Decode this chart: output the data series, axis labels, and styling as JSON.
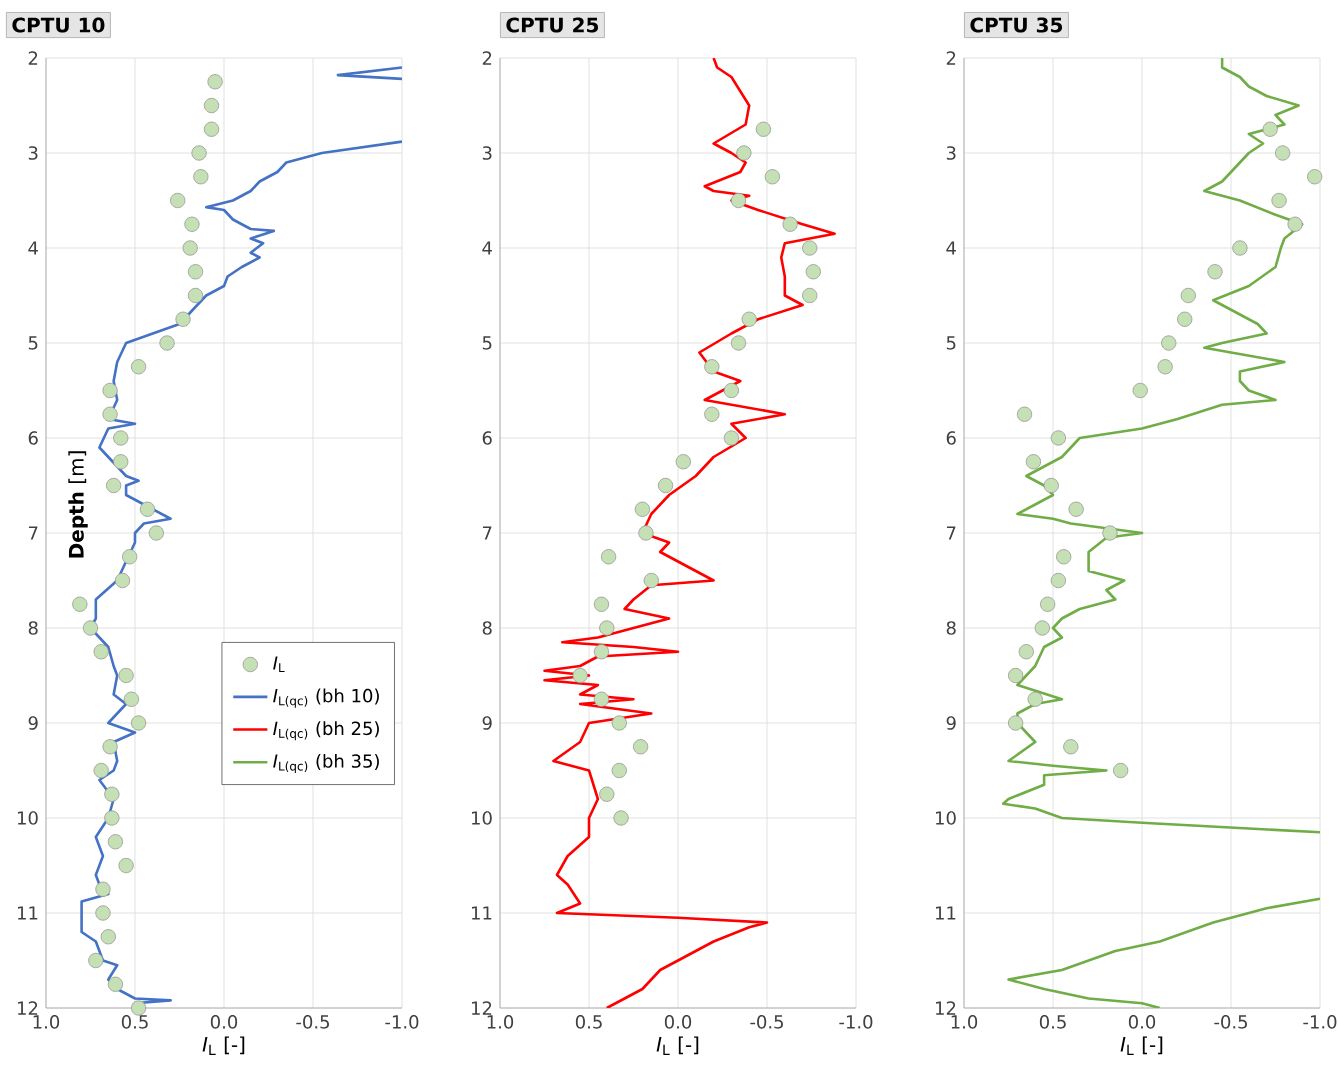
{
  "chart_data": [
    {
      "type": "line",
      "title": "CPTU 10",
      "xlabel": "*I*$_{L}$ [-]",
      "ylabel": "**Depth** [m]",
      "xlim": [
        1.0,
        -1.0
      ],
      "ylim": [
        12,
        2
      ],
      "xticks": [
        {
          "value": 1.0,
          "label": "1.0"
        },
        {
          "value": 0.5,
          "label": "0.5"
        },
        {
          "value": 0.0,
          "label": "0.0"
        },
        {
          "value": -0.5,
          "label": "-0.5"
        },
        {
          "value": -1.0,
          "label": "-1.0"
        }
      ],
      "yticks": [
        2,
        3,
        4,
        5,
        6,
        7,
        8,
        9,
        10,
        11,
        12
      ],
      "grid": true,
      "legend": "right",
      "series": [
        {
          "type": "scatter",
          "name": "*I*$_{L}$",
          "color": "#c5e0b4",
          "x": [
            0.05,
            0.07,
            0.07,
            0.14,
            0.13,
            0.26,
            0.18,
            0.19,
            0.16,
            0.16,
            0.23,
            0.32,
            0.48,
            0.64,
            0.64,
            0.58,
            0.58,
            0.62,
            0.43,
            0.38,
            0.53,
            0.57,
            0.81,
            0.75,
            0.69,
            0.55,
            0.52,
            0.48,
            0.64,
            0.69,
            0.63,
            0.63,
            0.61,
            0.55,
            0.68,
            0.68,
            0.65,
            0.72,
            0.61,
            0.48
          ],
          "values": [
            2.25,
            2.5,
            2.75,
            3.0,
            3.25,
            3.5,
            3.75,
            4.0,
            4.25,
            4.5,
            4.75,
            5.0,
            5.25,
            5.5,
            5.75,
            6.0,
            6.25,
            6.5,
            6.75,
            7.0,
            7.25,
            7.5,
            7.75,
            8.0,
            8.25,
            8.5,
            8.75,
            9.0,
            9.25,
            9.5,
            9.75,
            10.0,
            10.25,
            10.5,
            10.75,
            11.0,
            11.25,
            11.5,
            11.75,
            12.0
          ]
        },
        {
          "name": "*I*$_{L(qc)}$ (bh 10)",
          "color": "#4472c4",
          "x": [
            -1.0,
            -0.64,
            -1.0,
            null,
            -1.0,
            -0.55,
            -0.35,
            -0.3,
            -0.2,
            -0.15,
            -0.05,
            0.1,
            0.0,
            -0.05,
            -0.15,
            -0.28,
            -0.15,
            -0.22,
            -0.15,
            -0.2,
            -0.1,
            -0.02,
            0.0,
            0.1,
            0.15,
            0.2,
            0.25,
            0.4,
            0.55,
            0.6,
            0.62,
            0.6,
            0.65,
            0.5,
            0.65,
            0.7,
            0.65,
            0.6,
            0.55,
            0.48,
            0.55,
            0.55,
            0.45,
            0.3,
            0.45,
            0.5,
            0.5,
            0.6,
            0.72,
            0.72,
            0.75,
            0.7,
            0.65,
            0.62,
            0.6,
            0.62,
            0.55,
            0.65,
            0.5,
            0.62,
            0.6,
            0.62,
            0.7,
            0.62,
            0.65,
            0.72,
            0.68,
            0.72,
            0.7,
            0.65,
            0.8,
            0.8,
            0.72,
            0.68,
            0.6,
            0.65,
            0.6,
            0.5,
            0.3,
            0.5,
            0.5
          ],
          "values": [
            2.1,
            2.18,
            2.22,
            null,
            2.88,
            3.0,
            3.1,
            3.2,
            3.3,
            3.4,
            3.5,
            3.57,
            3.6,
            3.7,
            3.8,
            3.82,
            3.9,
            3.95,
            4.05,
            4.1,
            4.2,
            4.3,
            4.4,
            4.5,
            4.6,
            4.7,
            4.8,
            4.9,
            5.0,
            5.2,
            5.4,
            5.6,
            5.8,
            5.85,
            5.9,
            6.1,
            6.2,
            6.3,
            6.4,
            6.45,
            6.5,
            6.6,
            6.7,
            6.85,
            6.9,
            7.0,
            7.1,
            7.5,
            7.7,
            7.9,
            8.0,
            8.1,
            8.2,
            8.4,
            8.5,
            8.7,
            8.8,
            9.0,
            9.1,
            9.2,
            9.4,
            9.5,
            9.6,
            9.8,
            10.0,
            10.2,
            10.4,
            10.6,
            10.7,
            10.8,
            10.88,
            11.2,
            11.3,
            11.5,
            11.55,
            11.7,
            11.8,
            11.9,
            11.92,
            11.95,
            12.0
          ]
        }
      ]
    },
    {
      "type": "line",
      "title": "CPTU 25",
      "xlabel": "*I*$_{L}$ [-]",
      "xlim": [
        1.0,
        -1.0
      ],
      "ylim": [
        12,
        2
      ],
      "xticks": [
        {
          "value": 1.0,
          "label": "1.0"
        },
        {
          "value": 0.5,
          "label": "0.5"
        },
        {
          "value": 0.0,
          "label": "0.0"
        },
        {
          "value": -0.5,
          "label": "-0.5"
        },
        {
          "value": -1.0,
          "label": "-1.0"
        }
      ],
      "yticks": [
        2,
        3,
        4,
        5,
        6,
        7,
        8,
        9,
        10,
        11,
        12
      ],
      "grid": true,
      "series": [
        {
          "type": "scatter",
          "color": "#c5e0b4",
          "x": [
            -0.48,
            -0.37,
            -0.53,
            -0.34,
            -0.63,
            -0.74,
            -0.76,
            -0.74,
            -0.4,
            -0.34,
            -0.19,
            -0.3,
            -0.19,
            -0.3,
            -0.03,
            0.07,
            0.2,
            0.18,
            0.39,
            0.15,
            0.43,
            0.4,
            0.43,
            0.55,
            0.43,
            0.33,
            0.21,
            0.33,
            0.4,
            0.32
          ],
          "values": [
            2.75,
            3.0,
            3.25,
            3.5,
            3.75,
            4.0,
            4.25,
            4.5,
            4.75,
            5.0,
            5.25,
            5.5,
            5.75,
            6.0,
            6.25,
            6.5,
            6.75,
            7.0,
            7.25,
            7.5,
            7.75,
            8.0,
            8.25,
            8.5,
            8.75,
            9.0,
            9.25,
            9.5,
            9.75,
            10.0
          ]
        },
        {
          "name": "*I*$_{L(qc)}$ (bh 25)",
          "color": "#ff0000",
          "x": [
            -0.2,
            -0.22,
            -0.3,
            -0.4,
            -0.38,
            -0.2,
            -0.3,
            -0.38,
            -0.35,
            -0.15,
            -0.2,
            -0.4,
            -0.3,
            -0.45,
            -0.7,
            -0.88,
            -0.6,
            -0.58,
            -0.6,
            -0.6,
            -0.7,
            -0.45,
            -0.3,
            -0.12,
            -0.2,
            -0.35,
            -0.15,
            -0.6,
            -0.3,
            -0.38,
            -0.2,
            -0.1,
            0.05,
            0.15,
            0.2,
            0.05,
            0.1,
            -0.05,
            -0.2,
            0.15,
            0.25,
            0.3,
            0.05,
            0.45,
            0.65,
            0.25,
            0.0,
            0.45,
            0.55,
            0.75,
            0.5,
            0.75,
            0.45,
            0.55,
            0.25,
            0.55,
            0.15,
            0.5,
            0.55,
            0.7,
            0.5,
            0.45,
            0.5,
            0.5,
            0.62,
            0.68,
            0.62,
            0.55,
            0.68,
            0.0,
            -0.5,
            -0.4,
            -0.2,
            -0.1,
            0.1,
            0.15,
            0.2,
            0.3,
            0.4
          ],
          "values": [
            2.0,
            2.1,
            2.2,
            2.5,
            2.7,
            2.9,
            3.0,
            3.1,
            3.2,
            3.35,
            3.4,
            3.45,
            3.5,
            3.6,
            3.75,
            3.85,
            3.95,
            4.1,
            4.3,
            4.5,
            4.6,
            4.75,
            4.9,
            5.1,
            5.3,
            5.4,
            5.6,
            5.75,
            5.85,
            6.0,
            6.2,
            6.4,
            6.6,
            6.8,
            7.0,
            7.1,
            7.2,
            7.35,
            7.5,
            7.55,
            7.7,
            7.8,
            7.9,
            8.1,
            8.15,
            8.2,
            8.25,
            8.3,
            8.4,
            8.45,
            8.5,
            8.55,
            8.6,
            8.7,
            8.75,
            8.8,
            8.9,
            9.0,
            9.2,
            9.4,
            9.5,
            9.8,
            10.0,
            10.2,
            10.4,
            10.6,
            10.7,
            10.9,
            11.0,
            11.05,
            11.1,
            11.15,
            11.3,
            11.4,
            11.6,
            11.7,
            11.8,
            11.9,
            12.0
          ]
        }
      ]
    },
    {
      "type": "line",
      "title": "CPTU 35",
      "xlabel": "*I*$_{L}$ [-]",
      "xlim": [
        1.0,
        -1.0
      ],
      "ylim": [
        12,
        2
      ],
      "xticks": [
        {
          "value": 1.0,
          "label": "1.0"
        },
        {
          "value": 0.5,
          "label": "0.5"
        },
        {
          "value": 0.0,
          "label": "0.0"
        },
        {
          "value": -0.5,
          "label": "-0.5"
        },
        {
          "value": -1.0,
          "label": "-1.0"
        }
      ],
      "yticks": [
        2,
        3,
        4,
        5,
        6,
        7,
        8,
        9,
        10,
        11,
        12
      ],
      "grid": true,
      "series": [
        {
          "type": "scatter",
          "color": "#c5e0b4",
          "x": [
            -0.72,
            -0.79,
            -0.97,
            -0.77,
            -0.86,
            -0.55,
            -0.41,
            -0.26,
            -0.24,
            -0.15,
            -0.13,
            0.01,
            0.66,
            0.47,
            0.61,
            0.51,
            0.37,
            0.18,
            0.44,
            0.47,
            0.53,
            0.56,
            0.65,
            0.71,
            0.6,
            0.71,
            0.4,
            0.12
          ],
          "values": [
            2.75,
            3.0,
            3.25,
            3.5,
            3.75,
            4.0,
            4.25,
            4.5,
            4.75,
            5.0,
            5.25,
            5.5,
            5.75,
            6.0,
            6.25,
            6.5,
            6.75,
            7.0,
            7.25,
            7.5,
            7.75,
            8.0,
            8.25,
            8.5,
            8.75,
            9.0,
            9.25,
            9.5
          ]
        },
        {
          "name": "*I*$_{L(qc)}$ (bh 35)",
          "color": "#70ad47",
          "x": [
            -0.45,
            -0.45,
            -0.55,
            -0.6,
            -0.7,
            -0.88,
            -0.75,
            -0.8,
            -0.6,
            -0.68,
            -0.6,
            -0.55,
            -0.45,
            -0.35,
            -0.55,
            -0.75,
            -0.9,
            -0.8,
            -0.78,
            -0.75,
            -0.6,
            -0.4,
            -0.55,
            -0.65,
            -0.7,
            -0.45,
            -0.35,
            -0.5,
            -0.8,
            -0.55,
            -0.55,
            -0.6,
            -0.75,
            -0.45,
            -0.2,
            0.0,
            0.35,
            0.4,
            0.45,
            0.65,
            0.55,
            0.5,
            0.6,
            0.7,
            0.5,
            0.4,
            0.0,
            0.2,
            0.3,
            0.3,
            0.1,
            0.2,
            0.15,
            0.35,
            0.45,
            0.5,
            0.45,
            0.55,
            0.6,
            0.7,
            0.45,
            0.6,
            0.7,
            0.7,
            0.6,
            0.75,
            0.5,
            0.2,
            0.55,
            0.55,
            0.75,
            0.78,
            0.6,
            0.45,
            0.0,
            -1.0,
            null,
            -1.0,
            -0.7,
            -0.4,
            -0.1,
            0.15,
            0.45,
            0.75,
            0.55,
            0.3,
            0.0,
            -0.1
          ],
          "values": [
            2.0,
            2.1,
            2.2,
            2.3,
            2.4,
            2.5,
            2.6,
            2.7,
            2.8,
            2.9,
            3.0,
            3.1,
            3.3,
            3.4,
            3.5,
            3.65,
            3.75,
            3.9,
            4.0,
            4.2,
            4.4,
            4.55,
            4.7,
            4.8,
            4.9,
            5.0,
            5.05,
            5.1,
            5.2,
            5.3,
            5.4,
            5.5,
            5.6,
            5.65,
            5.8,
            5.9,
            6.0,
            6.1,
            6.2,
            6.4,
            6.5,
            6.6,
            6.7,
            6.8,
            6.85,
            6.9,
            7.0,
            7.05,
            7.2,
            7.4,
            7.5,
            7.6,
            7.7,
            7.8,
            7.9,
            8.0,
            8.1,
            8.2,
            8.4,
            8.6,
            8.75,
            8.8,
            8.9,
            9.0,
            9.2,
            9.4,
            9.45,
            9.5,
            9.55,
            9.65,
            9.8,
            9.85,
            9.9,
            10.0,
            10.05,
            10.15,
            null,
            10.85,
            10.95,
            11.1,
            11.3,
            11.4,
            11.6,
            11.7,
            11.8,
            11.9,
            11.95,
            12.0
          ]
        }
      ]
    }
  ]
}
